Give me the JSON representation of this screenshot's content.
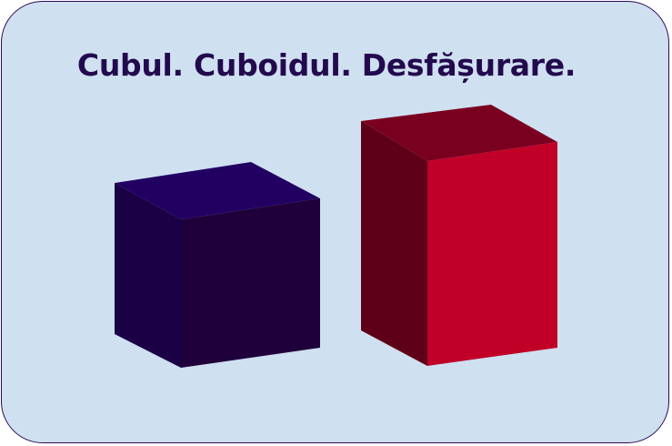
{
  "title": "Cubul. Cuboidul. Desfășurare.",
  "shapes": [
    {
      "name": "cube",
      "colors": {
        "top": "#210062",
        "left": "#1a0045",
        "front": "#20003a"
      }
    },
    {
      "name": "cuboid",
      "colors": {
        "top": "#7a0020",
        "left": "#5e0018",
        "front": "#c00026"
      }
    }
  ],
  "colors": {
    "background": "#cfe0f1",
    "border": "#2a0a52",
    "title": "#23094d"
  }
}
